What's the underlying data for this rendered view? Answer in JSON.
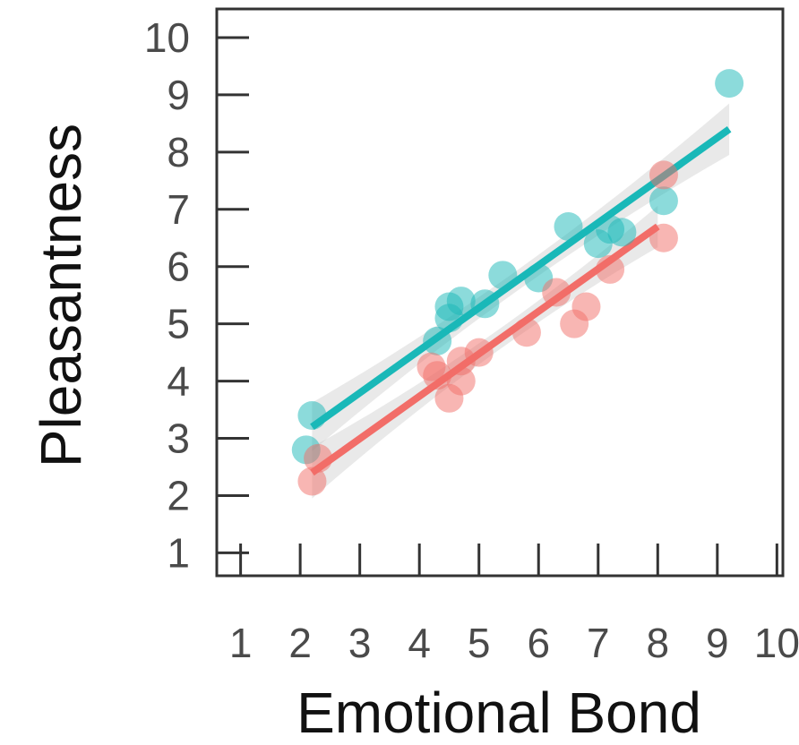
{
  "chart_data": {
    "type": "scatter",
    "xlabel": "Emotional Bond",
    "ylabel": "Pleasantness",
    "xlim": [
      0.6,
      10.1
    ],
    "ylim": [
      0.6,
      10.5
    ],
    "x_ticks": [
      1,
      2,
      3,
      4,
      5,
      6,
      7,
      8,
      9,
      10
    ],
    "y_ticks": [
      1,
      2,
      3,
      4,
      5,
      6,
      7,
      8,
      9,
      10
    ],
    "grid": false,
    "legend": "none",
    "series": [
      {
        "color": "#19b8b8",
        "points": [
          {
            "x": 2.1,
            "y": 2.8
          },
          {
            "x": 2.2,
            "y": 3.4
          },
          {
            "x": 4.3,
            "y": 4.7
          },
          {
            "x": 4.5,
            "y": 5.1
          },
          {
            "x": 4.5,
            "y": 5.3
          },
          {
            "x": 4.7,
            "y": 5.4
          },
          {
            "x": 5.1,
            "y": 5.35
          },
          {
            "x": 5.4,
            "y": 5.85
          },
          {
            "x": 6.0,
            "y": 5.8
          },
          {
            "x": 6.5,
            "y": 6.7
          },
          {
            "x": 7.0,
            "y": 6.4
          },
          {
            "x": 7.2,
            "y": 6.65
          },
          {
            "x": 7.4,
            "y": 6.6
          },
          {
            "x": 8.1,
            "y": 7.15
          },
          {
            "x": 9.2,
            "y": 9.2
          }
        ],
        "fit": {
          "x": [
            2.2,
            9.2
          ],
          "y": [
            3.2,
            8.4
          ]
        }
      },
      {
        "color": "#f26d68",
        "points": [
          {
            "x": 2.2,
            "y": 2.25
          },
          {
            "x": 2.3,
            "y": 2.65
          },
          {
            "x": 4.2,
            "y": 4.25
          },
          {
            "x": 4.3,
            "y": 4.1
          },
          {
            "x": 4.5,
            "y": 3.7
          },
          {
            "x": 4.7,
            "y": 4.0
          },
          {
            "x": 4.7,
            "y": 4.35
          },
          {
            "x": 5.0,
            "y": 4.5
          },
          {
            "x": 5.8,
            "y": 4.85
          },
          {
            "x": 6.3,
            "y": 5.55
          },
          {
            "x": 6.6,
            "y": 5.0
          },
          {
            "x": 6.8,
            "y": 5.3
          },
          {
            "x": 7.2,
            "y": 5.95
          },
          {
            "x": 8.1,
            "y": 6.5
          },
          {
            "x": 8.1,
            "y": 7.6
          }
        ],
        "fit": {
          "x": [
            2.2,
            8.0
          ],
          "y": [
            2.4,
            6.7
          ]
        }
      }
    ]
  }
}
